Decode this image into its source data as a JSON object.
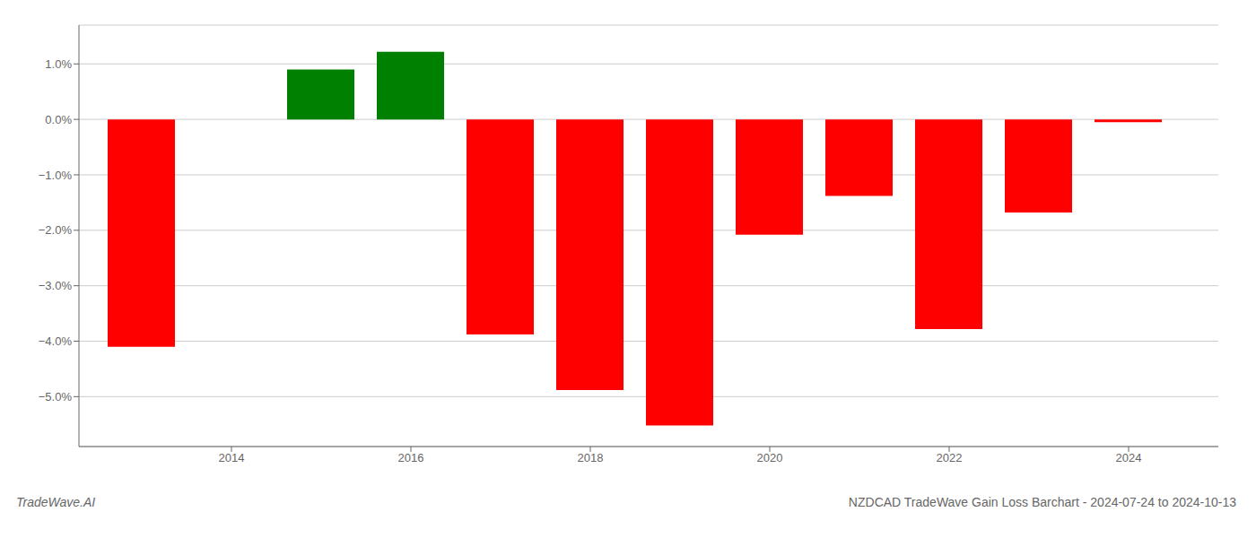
{
  "chart_data": {
    "type": "bar",
    "title": "NZDCAD TradeWave Gain Loss Barchart - 2024-07-24 to 2024-10-13",
    "annotations": [
      "TradeWave.AI"
    ],
    "x": [
      2013,
      2015,
      2016,
      2017,
      2018,
      2019,
      2020,
      2021,
      2022,
      2023,
      2024
    ],
    "values": [
      -4.1,
      0.9,
      1.22,
      -3.88,
      -4.88,
      -5.52,
      -2.08,
      -1.38,
      -3.78,
      -1.68,
      -0.05
    ],
    "colors": [
      "#ff0000",
      "#008000",
      "#008000",
      "#ff0000",
      "#ff0000",
      "#ff0000",
      "#ff0000",
      "#ff0000",
      "#ff0000",
      "#ff0000",
      "#ff0000"
    ],
    "xlim": [
      2012.3,
      2025.0
    ],
    "xticks": [
      2014,
      2016,
      2018,
      2020,
      2022,
      2024
    ],
    "ylim": [
      -5.9,
      1.7
    ],
    "yticks": [
      {
        "value": 1.0,
        "label": "1.0%"
      },
      {
        "value": 0.0,
        "label": "0.0%"
      },
      {
        "value": -1.0,
        "label": "−1.0%"
      },
      {
        "value": -2.0,
        "label": "−2.0%"
      },
      {
        "value": -3.0,
        "label": "−3.0%"
      },
      {
        "value": -4.0,
        "label": "−4.0%"
      },
      {
        "value": -5.0,
        "label": "−5.0%"
      }
    ],
    "grid": true
  }
}
